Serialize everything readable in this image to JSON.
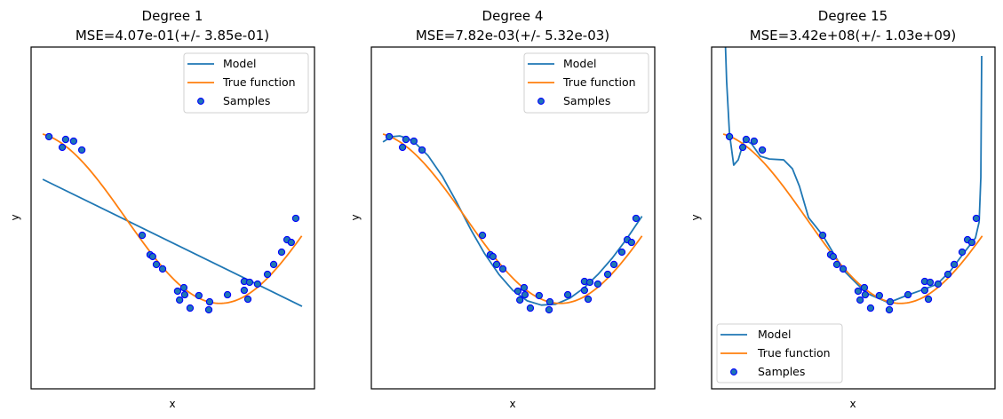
{
  "colors": {
    "model": "#1f77b4",
    "true_function": "#ff7f0e",
    "sample_fill": "#1f77b4",
    "sample_edge": "#0000ff",
    "frame": "#000000"
  },
  "chart_data": [
    {
      "type": "line",
      "title": "Degree 1",
      "subtitle": "MSE=4.07e-01(+/- 3.85e-01)",
      "xlabel": "x",
      "ylabel": "y",
      "xlim": [
        0,
        1
      ],
      "ylim": [
        -2,
        2
      ],
      "grid": false,
      "legend": {
        "placement": "top-right",
        "entries": [
          "Model",
          "True function",
          "Samples"
        ]
      },
      "series": [
        {
          "name": "Model",
          "kind": "line",
          "x": [
            0.041,
            0.956
          ],
          "y": [
            0.452,
            -1.034
          ]
        },
        {
          "name": "True function",
          "kind": "function",
          "expr": "cos(1.5*pi*x)",
          "x_range": [
            0.041,
            0.955
          ]
        },
        {
          "name": "Samples",
          "kind": "scatter",
          "ref": "samples"
        }
      ]
    },
    {
      "type": "line",
      "title": "Degree 4",
      "subtitle": "MSE=7.82e-03(+/- 5.32e-03)",
      "xlabel": "x",
      "ylabel": "y",
      "xlim": [
        0,
        1
      ],
      "ylim": [
        -2,
        2
      ],
      "grid": false,
      "legend": {
        "placement": "top-right",
        "entries": [
          "Model",
          "True function",
          "Samples"
        ]
      },
      "series": [
        {
          "name": "Model",
          "kind": "line",
          "x": [
            0.041,
            0.07,
            0.1,
            0.13,
            0.16,
            0.2,
            0.25,
            0.3,
            0.35,
            0.4,
            0.45,
            0.5,
            0.55,
            0.6,
            0.65,
            0.7,
            0.75,
            0.8,
            0.85,
            0.9,
            0.955
          ],
          "y": [
            0.89,
            0.95,
            0.96,
            0.93,
            0.86,
            0.73,
            0.49,
            0.19,
            -0.13,
            -0.42,
            -0.66,
            -0.85,
            -0.97,
            -1.02,
            -1.01,
            -0.94,
            -0.82,
            -0.66,
            -0.47,
            -0.25,
            0.02
          ]
        },
        {
          "name": "True function",
          "kind": "function",
          "expr": "cos(1.5*pi*x)",
          "x_range": [
            0.041,
            0.955
          ]
        },
        {
          "name": "Samples",
          "kind": "scatter",
          "ref": "samples"
        }
      ]
    },
    {
      "type": "line",
      "title": "Degree 15",
      "subtitle": "MSE=3.42e+08(+/- 1.03e+09)",
      "xlabel": "x",
      "ylabel": "y",
      "xlim": [
        0,
        1
      ],
      "ylim": [
        -2,
        2
      ],
      "grid": false,
      "legend": {
        "placement": "bottom-left",
        "entries": [
          "Model",
          "True function",
          "Samples"
        ]
      },
      "series": [
        {
          "name": "Model",
          "kind": "line",
          "x": [
            0.047,
            0.053,
            0.063,
            0.078,
            0.094,
            0.116,
            0.141,
            0.172,
            0.204,
            0.254,
            0.285,
            0.31,
            0.342,
            0.392,
            0.467,
            0.545,
            0.624,
            0.687,
            0.749,
            0.796,
            0.843,
            0.89,
            0.931,
            0.944,
            0.95,
            0.953
          ],
          "y": [
            2.2,
            1.6,
            0.99,
            0.618,
            0.68,
            0.92,
            0.868,
            0.722,
            0.69,
            0.68,
            0.577,
            0.37,
            0.005,
            -0.203,
            -0.618,
            -0.878,
            -0.992,
            -0.909,
            -0.836,
            -0.774,
            -0.618,
            -0.41,
            -0.234,
            -0.047,
            0.473,
            1.896
          ]
        },
        {
          "name": "True function",
          "kind": "function",
          "expr": "cos(1.5*pi*x)",
          "x_range": [
            0.041,
            0.955
          ]
        },
        {
          "name": "Samples",
          "kind": "scatter",
          "ref": "samples"
        }
      ]
    }
  ],
  "samples": {
    "x": [
      0.063,
      0.11,
      0.122,
      0.15,
      0.179,
      0.392,
      0.42,
      0.429,
      0.442,
      0.464,
      0.517,
      0.539,
      0.524,
      0.542,
      0.561,
      0.592,
      0.63,
      0.627,
      0.693,
      0.752,
      0.771,
      0.752,
      0.765,
      0.799,
      0.834,
      0.856,
      0.884,
      0.903,
      0.918,
      0.934
    ],
    "y": [
      0.951,
      0.826,
      0.919,
      0.899,
      0.795,
      -0.203,
      -0.431,
      -0.452,
      -0.545,
      -0.597,
      -0.857,
      -0.816,
      -0.961,
      -0.899,
      -1.055,
      -0.909,
      -0.982,
      -1.075,
      -0.899,
      -0.743,
      -0.753,
      -0.847,
      -0.951,
      -0.774,
      -0.66,
      -0.545,
      -0.4,
      -0.255,
      -0.286,
      -0.005
    ]
  }
}
